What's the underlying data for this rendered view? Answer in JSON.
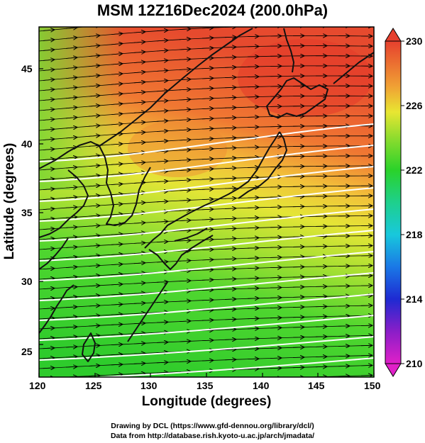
{
  "title": "MSM 12Z16Dec2024 (200.0hPa)",
  "axes": {
    "xlabel": "Longitude (degrees)",
    "ylabel": "Latitude  (degrees)",
    "xticks": [
      "120",
      "125",
      "130",
      "135",
      "140",
      "145",
      "150"
    ],
    "yticks": [
      "25",
      "30",
      "35",
      "40",
      "45"
    ]
  },
  "colorbar": {
    "ticks": [
      "210",
      "214",
      "218",
      "222",
      "226",
      "230"
    ]
  },
  "credits": {
    "line1": "Drawing by DCL (https://www.gfd-dennou.org/library/dcl/)",
    "line2": "Data from http://database.rish.kyoto-u.ac.jp/arch/jmadata/"
  },
  "colors": {
    "warm": "#e8452a",
    "mid": "#e8e030",
    "cool": "#2fd02c",
    "contour": "#ffffff",
    "coast": "#111111"
  }
}
